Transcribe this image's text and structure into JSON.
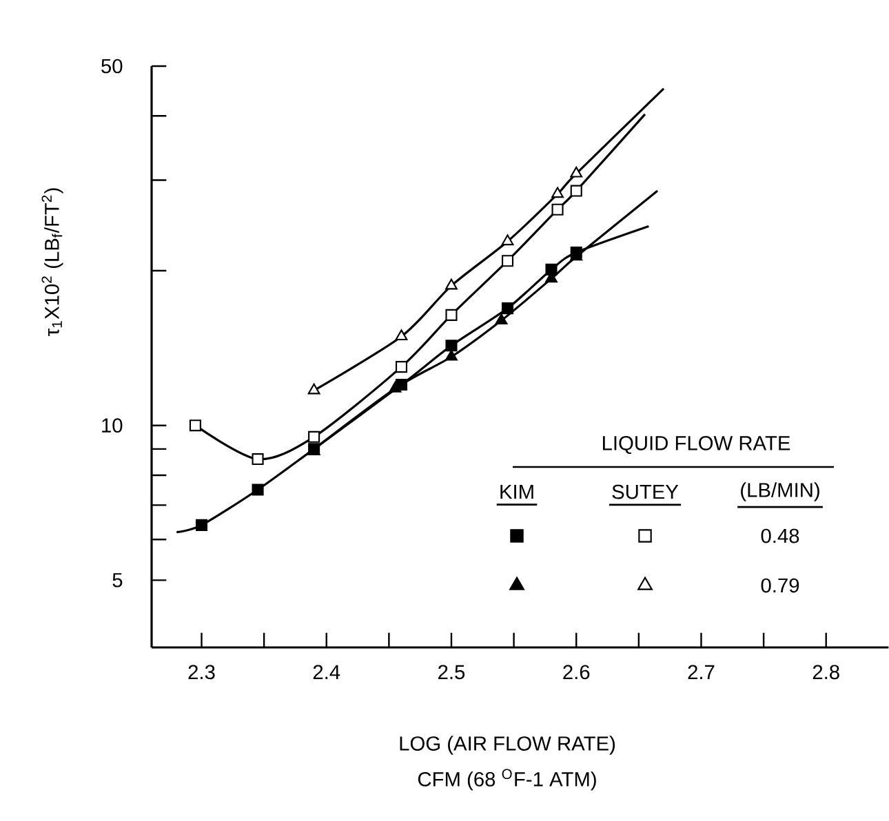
{
  "chart_data": {
    "type": "scatter",
    "xlabel": "LOG (AIR FLOW RATE)",
    "ylabel": "τ$_{1}$X10$^{2}$ (LB$_{f}$/FT$^{2}$)",
    "legend_title": "LIQUID FLOW RATE",
    "log": "y",
    "xlim": [
      2.26,
      2.85
    ],
    "ylim": [
      3.7,
      50
    ],
    "xticks": [
      2.3,
      {
        "value": 2.35,
        "label": null
      },
      2.4,
      {
        "value": 2.45,
        "label": null
      },
      2.5,
      {
        "value": 2.55,
        "label": null
      },
      2.6,
      {
        "value": 2.65,
        "label": null
      },
      2.7,
      {
        "value": 2.75,
        "label": null
      },
      2.8
    ],
    "yticks": [
      5,
      {
        "value": 6,
        "label": null
      },
      {
        "value": 7,
        "label": null
      },
      {
        "value": 8,
        "label": null
      },
      {
        "value": 9,
        "label": null
      },
      10,
      {
        "value": 20,
        "label": null
      },
      {
        "value": 30,
        "label": null
      },
      {
        "value": 40,
        "label": null
      },
      50
    ],
    "annotations": [
      "KIM",
      "SUTEY",
      "(LB/MIN)",
      "0.48",
      "0.79",
      "CFM (68 $^{O}$F-1 ATM)"
    ],
    "series": [
      {
        "marker": "square",
        "color": "#000000",
        "x": [
          2.3,
          2.345,
          2.39,
          2.46,
          2.5,
          2.545,
          2.58,
          2.6
        ],
        "values": [
          6.4,
          7.5,
          9.0,
          12.0,
          14.3,
          16.9,
          20.1,
          21.7
        ]
      },
      {
        "marker": "triangle",
        "color": "#000000",
        "x": [
          2.39,
          2.455,
          2.5,
          2.54,
          2.58,
          2.6
        ],
        "values": [
          8.9,
          11.8,
          13.6,
          16.0,
          19.3,
          21.3
        ]
      },
      {
        "marker": "square",
        "color": "#ffffff",
        "x": [
          2.295,
          2.345,
          2.39,
          2.46,
          2.5,
          2.545,
          2.585,
          2.6
        ],
        "values": [
          10.0,
          8.6,
          9.5,
          13.0,
          16.4,
          20.9,
          26.3,
          28.6
        ]
      },
      {
        "marker": "triangle",
        "color": "#ffffff",
        "x": [
          2.39,
          2.46,
          2.5,
          2.545,
          2.585,
          2.6
        ],
        "values": [
          11.7,
          14.9,
          18.7,
          22.8,
          28.2,
          30.9
        ]
      },
      {
        "type": "line",
        "marker": "none",
        "color": "#000000",
        "x": [
          2.28,
          2.3,
          2.345,
          2.39,
          2.46,
          2.5,
          2.545,
          2.58,
          2.6,
          2.658
        ],
        "values": [
          6.2,
          6.4,
          7.5,
          9.0,
          12.0,
          14.3,
          16.9,
          20.1,
          21.7,
          24.4
        ]
      },
      {
        "type": "line",
        "marker": "none",
        "color": "#000000",
        "x": [
          2.385,
          2.455,
          2.5,
          2.54,
          2.58,
          2.6,
          2.665
        ],
        "values": [
          8.8,
          11.8,
          13.6,
          16.0,
          19.3,
          21.3,
          28.6
        ]
      },
      {
        "type": "line",
        "marker": "none",
        "color": "#000000",
        "x": [
          2.295,
          2.345,
          2.39,
          2.46,
          2.5,
          2.545,
          2.585,
          2.6,
          2.655
        ],
        "values": [
          10.0,
          8.6,
          9.5,
          13.0,
          16.4,
          20.9,
          26.3,
          28.6,
          40.3
        ]
      },
      {
        "type": "line",
        "marker": "none",
        "color": "#000000",
        "x": [
          2.39,
          2.46,
          2.5,
          2.545,
          2.585,
          2.6,
          2.67
        ],
        "values": [
          11.7,
          14.9,
          18.7,
          22.8,
          28.2,
          30.9,
          45.2
        ]
      }
    ]
  }
}
